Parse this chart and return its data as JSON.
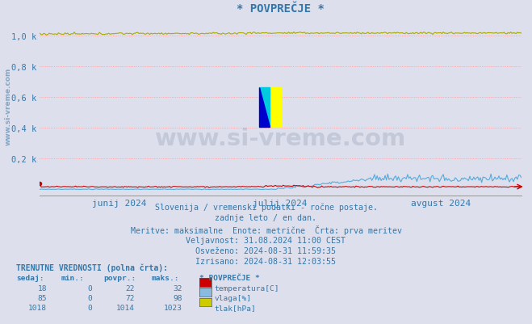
{
  "title": "* POVPREČJE *",
  "bg_color": "#dde0ec",
  "plot_bg_color": "#dde0ec",
  "x_labels": [
    "junij 2024",
    "julij 2024",
    "avgust 2024"
  ],
  "y_ticks": [
    0.0,
    0.2,
    0.4,
    0.6,
    0.8,
    1.0
  ],
  "y_tick_labels": [
    "",
    "0,2 k",
    "0,4 k",
    "0,6 k",
    "0,8 k",
    "1,0 k"
  ],
  "ylim": [
    -0.04,
    1.13
  ],
  "xlim": [
    0,
    365
  ],
  "grid_color": "#ff9999",
  "watermark_side": "www.si-vreme.com",
  "watermark_center": "www.si-vreme.com",
  "lines": {
    "temperatura": {
      "color": "#cc0000",
      "linewidth": 0.8
    },
    "vlaga": {
      "color": "#55aadd",
      "linewidth": 0.8
    },
    "tlak": {
      "color": "#aaaa00",
      "linewidth": 0.8
    }
  },
  "info_lines": [
    "Slovenija / vremenski podatki - ročne postaje.",
    "zadnje leto / en dan.",
    "Meritve: maksimalne  Enote: metrične  Črta: prva meritev",
    "Veljavnost: 31.08.2024 11:00 CEST",
    "Osveženo: 2024-08-31 11:59:35",
    "Izrisano: 2024-08-31 12:03:55"
  ],
  "table_header": "TRENUTNE VREDNOSTI (polna črta):",
  "table_col_headers": [
    "sedaj:",
    "min.:",
    "povpr.:",
    "maks.:",
    "* POVPREČJE *"
  ],
  "table_rows": [
    {
      "sedaj": 18,
      "min": 0,
      "povpr": 22,
      "maks": 32,
      "label": "temperatura[C]",
      "color": "#cc0000"
    },
    {
      "sedaj": 85,
      "min": 0,
      "povpr": 72,
      "maks": 98,
      "label": "vlaga[%]",
      "color": "#88bbdd"
    },
    {
      "sedaj": 1018,
      "min": 0,
      "povpr": 1014,
      "maks": 1023,
      "label": "tlak[hPa]",
      "color": "#cccc00"
    }
  ],
  "text_color": "#3377aa",
  "title_color": "#3377aa",
  "wm_color_alpha": 0.13,
  "logo_yellow": "#ffff00",
  "logo_cyan": "#00ccdd",
  "logo_blue": "#0000cc",
  "x_tick_positions": [
    60,
    182,
    304
  ],
  "arrow_color": "#cc0000"
}
